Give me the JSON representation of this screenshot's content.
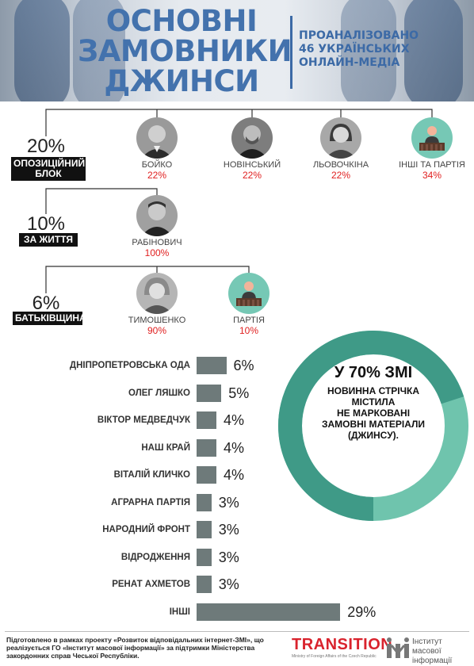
{
  "header": {
    "title_lines": [
      "ОСНОВНІ",
      "ЗАМОВНИКИ",
      "ДЖИНСИ"
    ],
    "subtitle_lines": [
      "ПРОАНАЛІЗОВАНО",
      "46 УКРАЇНСЬКИХ",
      "ОНЛАЙН-МЕДІА"
    ]
  },
  "parties": [
    {
      "share": "20%",
      "label_lines": [
        "ОПОЗИЦІЙНИЙ",
        "БЛОК"
      ],
      "people": [
        {
          "name": "БОЙКО",
          "value": "22%",
          "icon": "photo-man-icon"
        },
        {
          "name": "НОВІНСЬКИЙ",
          "value": "22%",
          "icon": "photo-man-icon"
        },
        {
          "name": "ЛЬОВОЧКІНА",
          "value": "22%",
          "icon": "photo-woman-icon"
        },
        {
          "name": "ІНШІ ТА ПАРТІЯ",
          "value": "34%",
          "icon": "speaker-podium-icon"
        }
      ]
    },
    {
      "share": "10%",
      "label_lines": [
        "ЗА ЖИТТЯ"
      ],
      "people": [
        {
          "name": "РАБІНОВИЧ",
          "value": "100%",
          "icon": "photo-man-icon"
        }
      ]
    },
    {
      "share": "6%",
      "label_lines": [
        "БАТЬКІВЩИНА"
      ],
      "people": [
        {
          "name": "ТИМОШЕНКО",
          "value": "90%",
          "icon": "photo-woman-icon"
        },
        {
          "name": "ПАРТІЯ",
          "value": "10%",
          "icon": "speaker-podium-icon"
        }
      ]
    }
  ],
  "chart_data": {
    "type": "bar",
    "orientation": "horizontal",
    "categories": [
      "ДНІПРОПЕТРОВСЬКА ОДА",
      "ОЛЕГ ЛЯШКО",
      "ВІКТОР МЕДВЕДЧУК",
      "НАШ КРАЙ",
      "ВІТАЛІЙ КЛИЧКО",
      "АГРАРНА ПАРТІЯ",
      "НАРОДНИЙ ФРОНТ",
      "ВІДРОДЖЕННЯ",
      "РЕНАТ АХМЕТОВ",
      "ІНШІ"
    ],
    "values": [
      6,
      5,
      4,
      4,
      4,
      3,
      3,
      3,
      3,
      29
    ],
    "value_labels": [
      "6%",
      "5%",
      "4%",
      "4%",
      "4%",
      "3%",
      "3%",
      "3%",
      "3%",
      "29%"
    ],
    "bar_color": "#6e7a7a",
    "grid": false
  },
  "donut": {
    "value": 70,
    "headline": "У 70% ЗМІ",
    "text_lines": [
      "НОВИННА СТРІЧКА",
      "МІСТИЛА",
      "НЕ МАРКОВАНІ",
      "ЗАМОВНІ МАТЕРІАЛИ",
      "(ДЖИНСУ)."
    ],
    "color_main": "#3f9a87",
    "color_rest": "#6fc4ad"
  },
  "footer": {
    "text": "Підготовлено в рамках проекту «Розвиток відповідальних інтернет-ЗМІ», що реалізується ГО «Інститут масової інформації» за підтримки Міністерства закордонних справ Чеської Республіки.",
    "transition_logo": "TRANSITION",
    "transition_sub": "Ministry of Foreign Affairs of the Czech Republic",
    "imi_lines": [
      "Інститут масової",
      "інформації"
    ]
  },
  "colors": {
    "title_blue": "#4372ad",
    "accent_red": "#e02020",
    "tree_line": "#333333"
  }
}
